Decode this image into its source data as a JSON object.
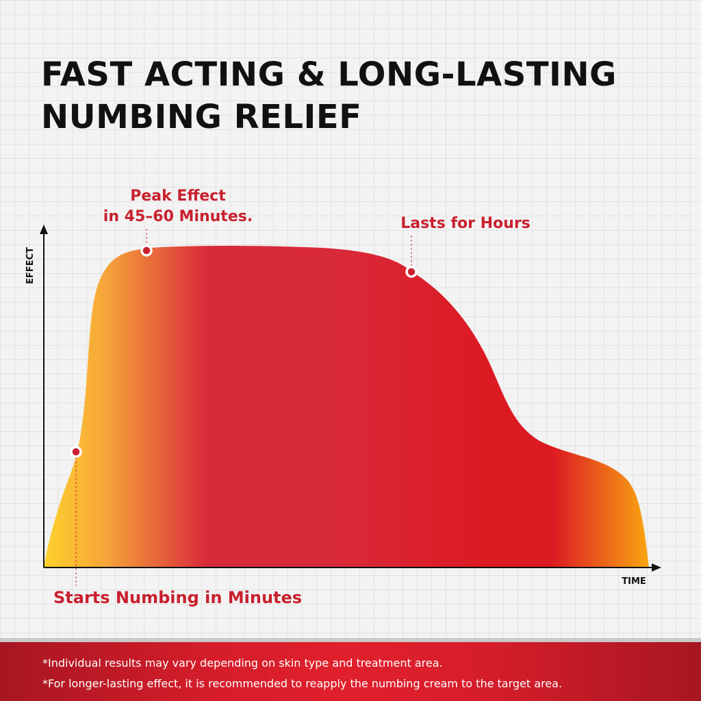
{
  "header": {
    "title_line1": "FAST ACTING & LONG-LASTING",
    "title_line2": "NUMBING RELIEF"
  },
  "chart_data": {
    "type": "area",
    "ylabel": "EFFECT",
    "xlabel": "TIME",
    "colors": {
      "start": "#fdd12c",
      "mid": "#d92a3a",
      "peak_red": "#dc1a22",
      "end": "#f9a611",
      "annotation": "#c8202e"
    },
    "annotations": [
      {
        "id": "start",
        "label": "Starts Numbing in Minutes"
      },
      {
        "id": "peak",
        "label_line1": "Peak Effect",
        "label_line2": "in 45–60 Minutes."
      },
      {
        "id": "lasts",
        "label": "Lasts for Hours"
      }
    ]
  },
  "footer": {
    "note1": "*Individual results may vary depending on skin type and treatment area.",
    "note2": "*For longer-lasting effect, it is recommended to reapply the numbing cream to the target area."
  }
}
